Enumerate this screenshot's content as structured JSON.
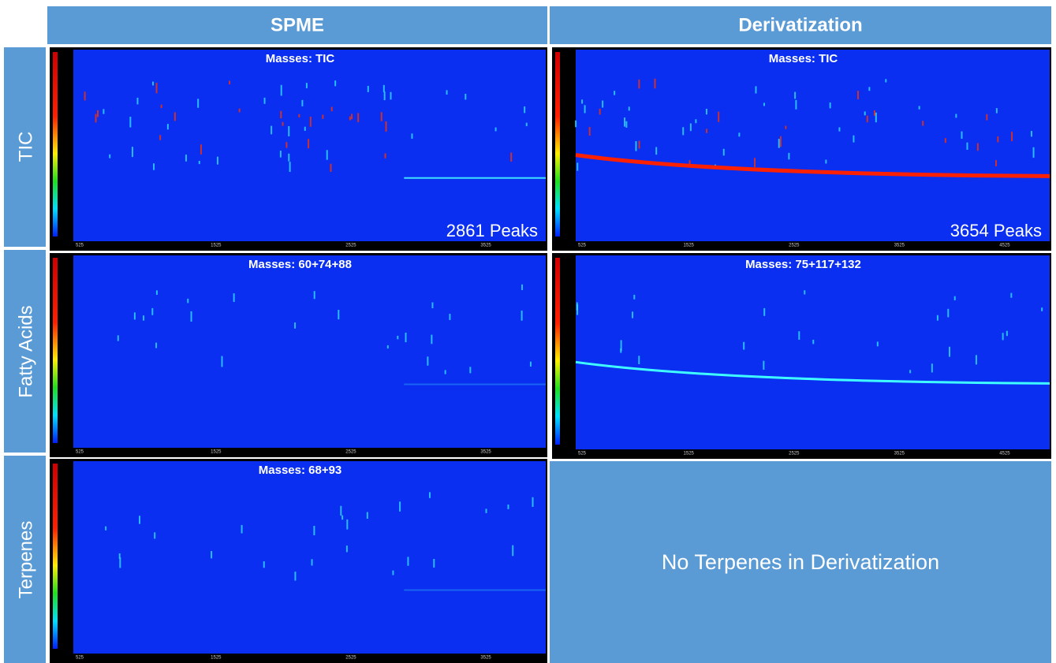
{
  "columns": [
    "SPME",
    "Derivatization"
  ],
  "rows": [
    "TIC",
    "Fatty Acids",
    "Terpenes"
  ],
  "panels": [
    {
      "label": "Masses: TIC",
      "peaks": "2861 Peaks",
      "xticks": [
        "525",
        "1525",
        "2525",
        "3525"
      ]
    },
    {
      "label": "Masses: TIC",
      "peaks": "3654 Peaks",
      "xticks": [
        "525",
        "1525",
        "2525",
        "3525",
        "4525"
      ]
    },
    {
      "label": "Masses: 60+74+88",
      "xticks": [
        "525",
        "1525",
        "2525",
        "3525"
      ]
    },
    {
      "label": "Masses: 75+117+132",
      "xticks": [
        "525",
        "1525",
        "2525",
        "3525",
        "4525"
      ]
    },
    {
      "label": "Masses: 68+93",
      "xticks": [
        "525",
        "1525",
        "2525",
        "3525"
      ]
    }
  ],
  "empty_note": "No Terpenes in Derivatization"
}
